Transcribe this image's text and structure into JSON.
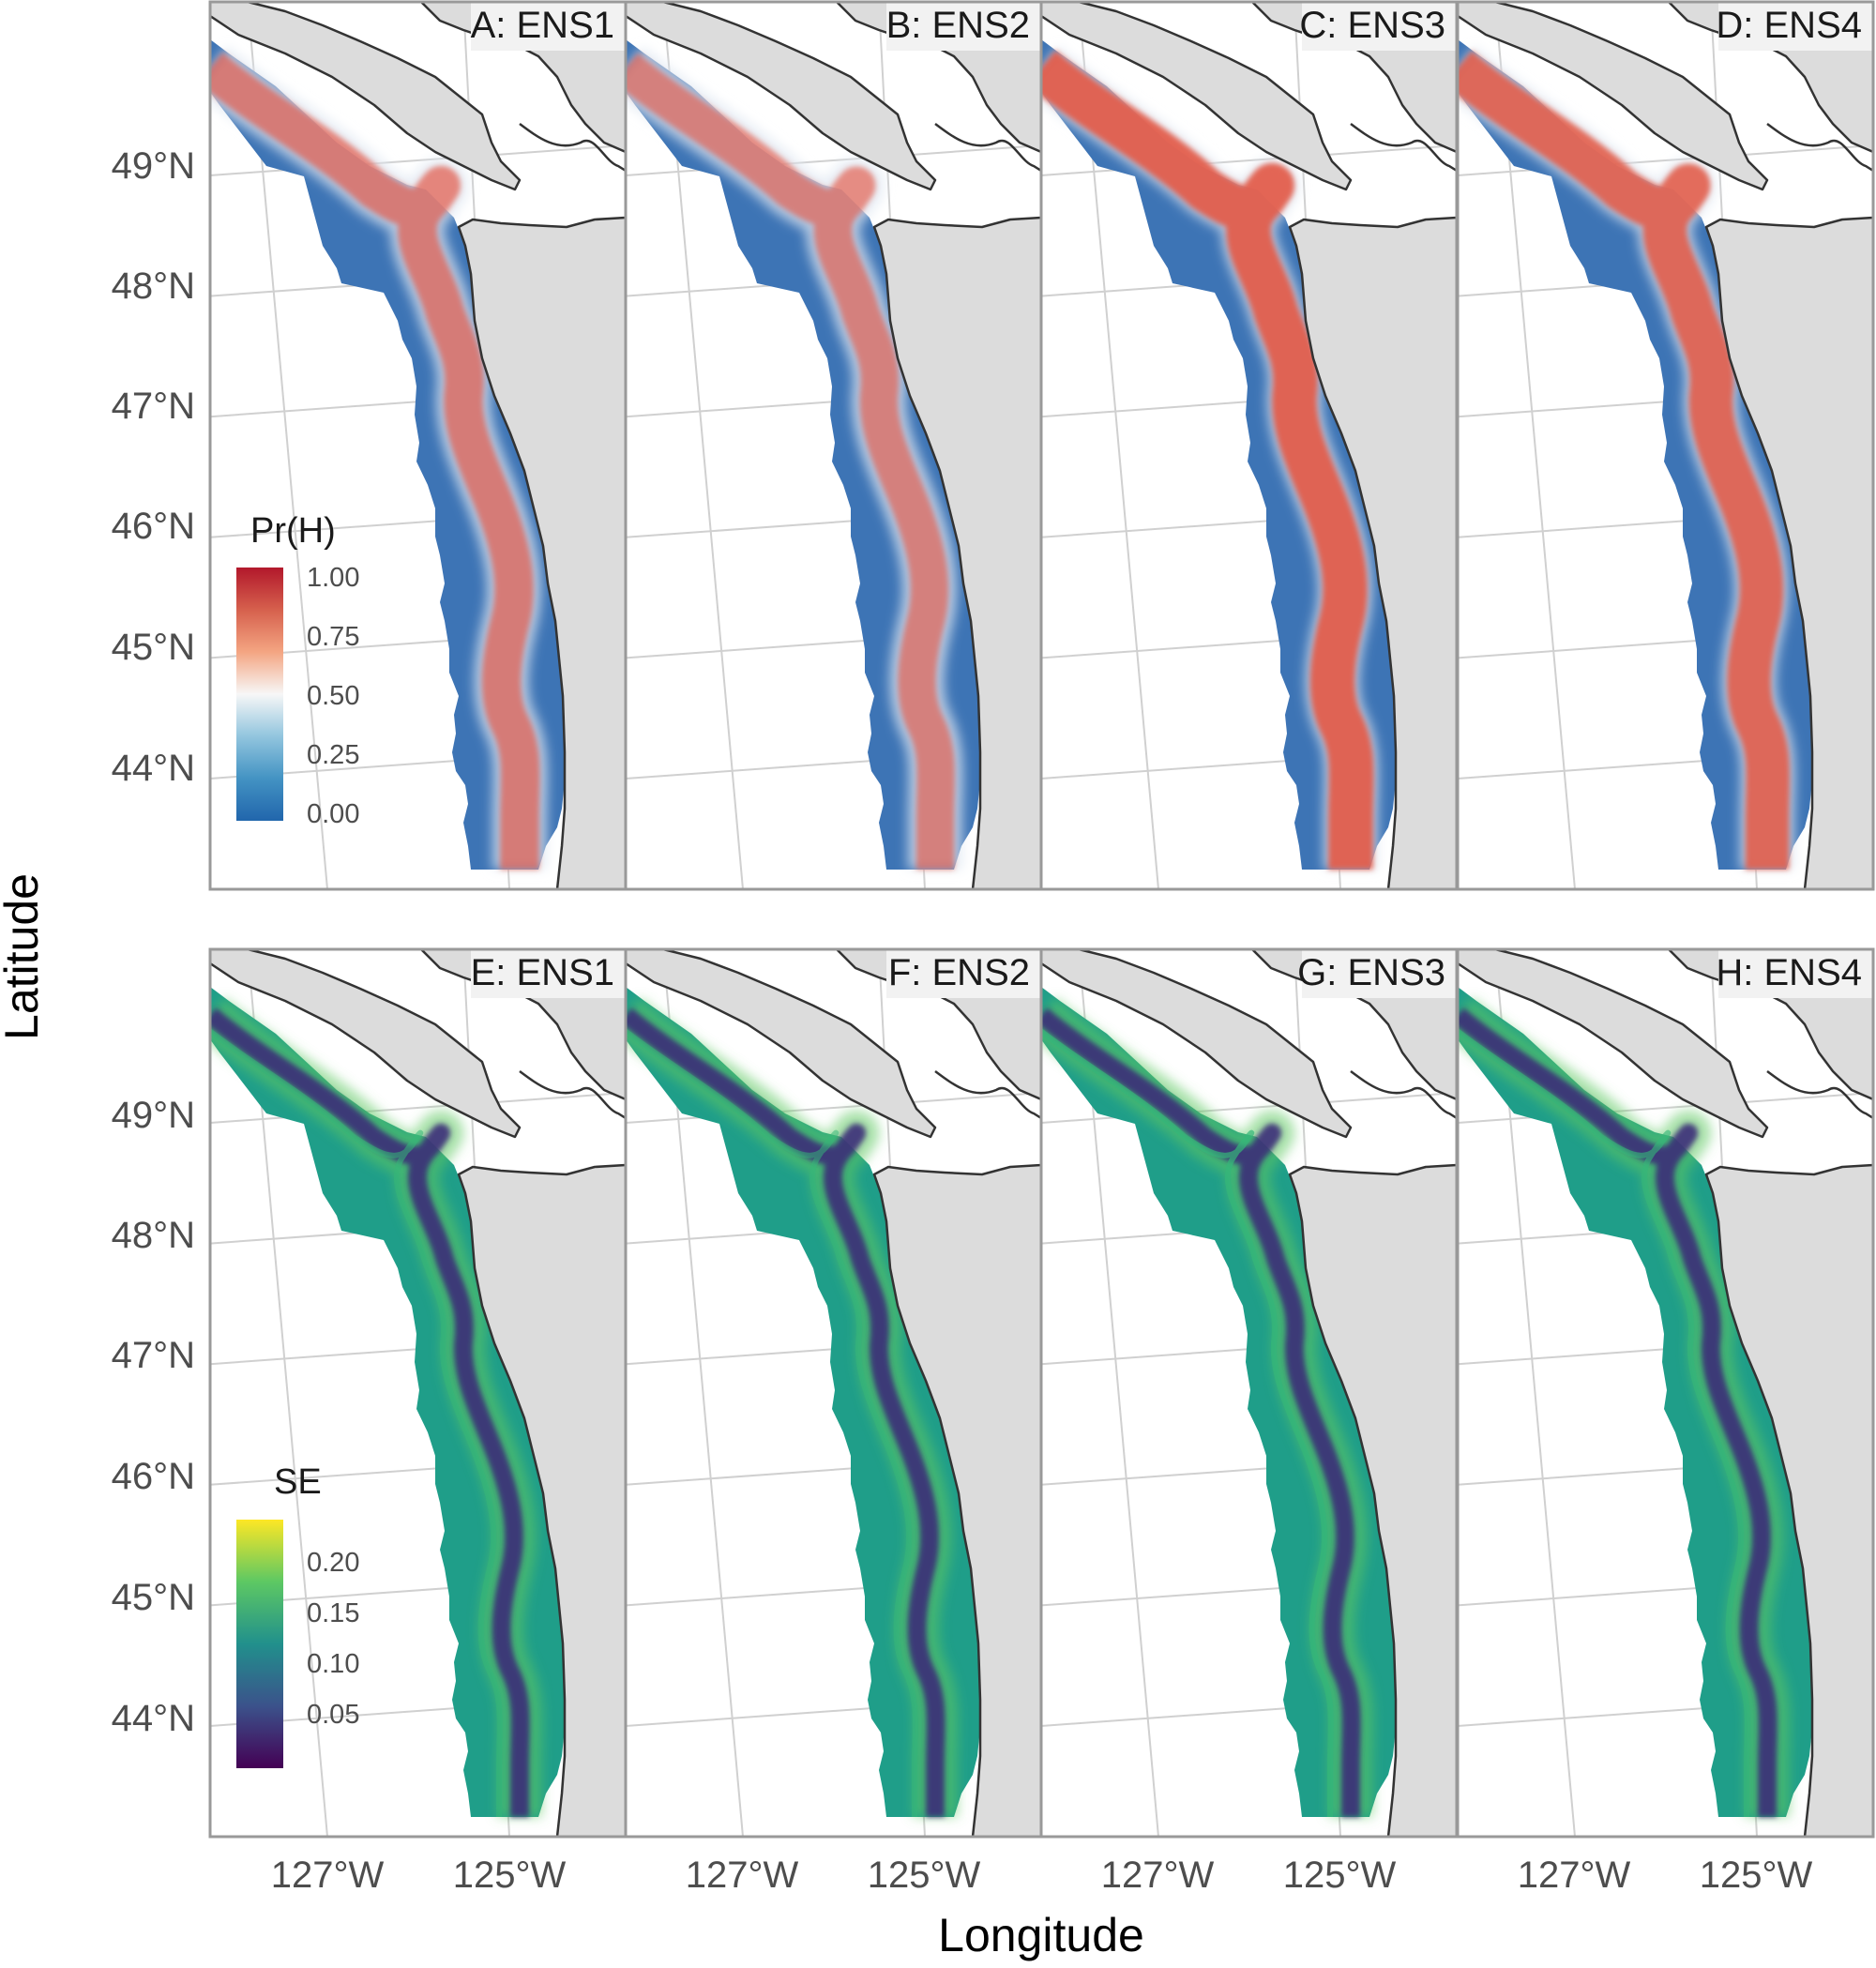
{
  "figure": {
    "xlabel": "Longitude",
    "ylabel": "Latitude"
  },
  "panels": [
    {
      "id": "A",
      "label": "A: ENS1",
      "row": 0,
      "col": 0,
      "scale": "prh",
      "intensity": 0.7
    },
    {
      "id": "B",
      "label": "B: ENS2",
      "row": 0,
      "col": 1,
      "scale": "prh",
      "intensity": 0.66
    },
    {
      "id": "C",
      "label": "C: ENS3",
      "row": 0,
      "col": 2,
      "scale": "prh",
      "intensity": 0.92
    },
    {
      "id": "D",
      "label": "D: ENS4",
      "row": 0,
      "col": 3,
      "scale": "prh",
      "intensity": 0.88
    },
    {
      "id": "E",
      "label": "E: ENS1",
      "row": 1,
      "col": 0,
      "scale": "se",
      "intensity": 0.55
    },
    {
      "id": "F",
      "label": "F: ENS2",
      "row": 1,
      "col": 1,
      "scale": "se",
      "intensity": 0.52
    },
    {
      "id": "G",
      "label": "G: ENS3",
      "row": 1,
      "col": 2,
      "scale": "se",
      "intensity": 0.7
    },
    {
      "id": "H",
      "label": "H: ENS4",
      "row": 1,
      "col": 3,
      "scale": "se",
      "intensity": 0.62
    }
  ],
  "lat_ticks": [
    "49°N",
    "48°N",
    "47°N",
    "46°N",
    "45°N",
    "44°N"
  ],
  "lon_ticks": [
    "127°W",
    "125°W"
  ],
  "legends": {
    "prh": {
      "title": "Pr(H)",
      "ticks": [
        "1.00",
        "0.75",
        "0.50",
        "0.25",
        "0.00"
      ],
      "colors": [
        "#2166ac",
        "#4393c3",
        "#92c5de",
        "#f7f7f7",
        "#f4a582",
        "#d6604d",
        "#b2182b"
      ]
    },
    "se": {
      "title": "SE",
      "ticks": [
        "0.20",
        "0.15",
        "0.10",
        "0.05"
      ],
      "colors": [
        "#440154",
        "#3b528b",
        "#21908c",
        "#5dc863",
        "#fde725"
      ]
    }
  },
  "colors": {
    "land": "#dcdcdc",
    "ocean": "#ffffff",
    "grid": "#d0d0d0",
    "coast": "#333333",
    "panel_border": "#999999",
    "strip_bg": "#f2f2f2"
  }
}
